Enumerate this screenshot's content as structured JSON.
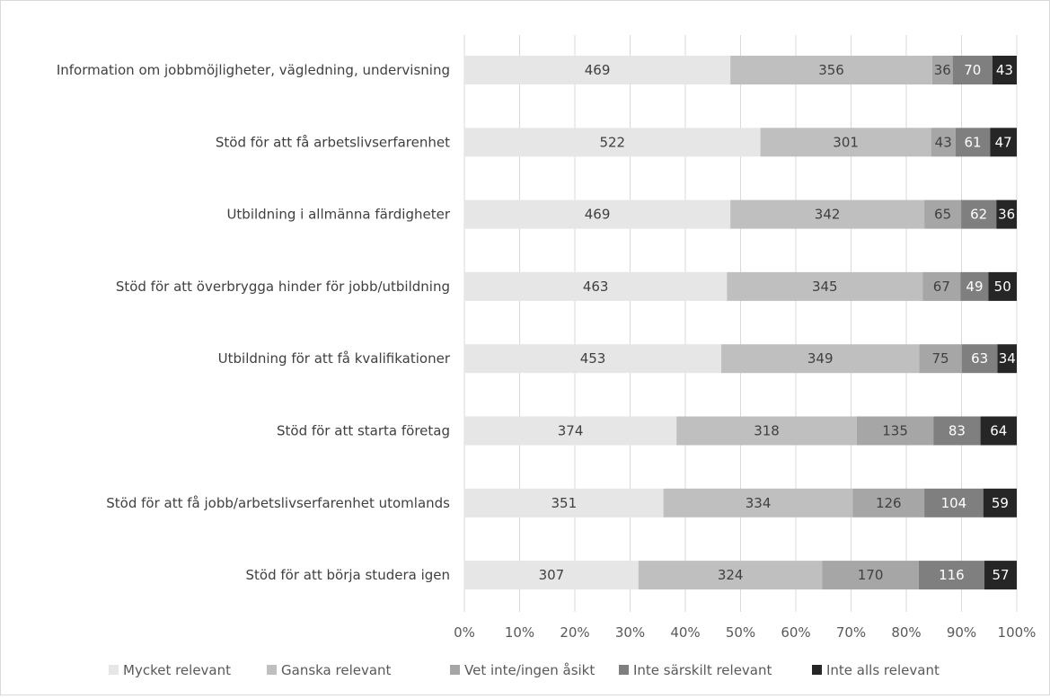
{
  "chart_data": {
    "type": "bar",
    "orientation": "horizontal",
    "stacking": "percent",
    "categories": [
      "Information om jobbmöjligheter, vägledning, undervisning",
      "Stöd för att få arbetslivserfarenhet",
      "Utbildning i allmänna färdigheter",
      "Stöd för att överbrygga hinder för jobb/utbildning",
      "Utbildning för att få kvalifikationer",
      "Stöd för att starta företag",
      "Stöd för att få jobb/arbetslivserfarenhet utomlands",
      "Stöd för att börja studera igen"
    ],
    "series": [
      {
        "name": "Mycket relevant",
        "color": "#e6e6e6",
        "label_color": "#404040",
        "values": [
          469,
          522,
          469,
          463,
          453,
          374,
          351,
          307
        ]
      },
      {
        "name": "Ganska relevant",
        "color": "#bfbfbf",
        "label_color": "#404040",
        "values": [
          356,
          301,
          342,
          345,
          349,
          318,
          334,
          324
        ]
      },
      {
        "name": "Vet inte/ingen åsikt",
        "color": "#a6a6a6",
        "label_color": "#404040",
        "values": [
          36,
          43,
          65,
          67,
          75,
          135,
          126,
          170
        ]
      },
      {
        "name": "Inte särskilt relevant",
        "color": "#7f7f7f",
        "label_color": "#ffffff",
        "values": [
          70,
          61,
          62,
          49,
          63,
          83,
          104,
          116
        ]
      },
      {
        "name": "Inte alls relevant",
        "color": "#262626",
        "label_color": "#ffffff",
        "values": [
          43,
          47,
          36,
          50,
          34,
          64,
          59,
          57
        ]
      }
    ],
    "x_ticks": [
      "0%",
      "10%",
      "20%",
      "30%",
      "40%",
      "50%",
      "60%",
      "70%",
      "80%",
      "90%",
      "100%"
    ],
    "xlim": [
      0,
      100
    ],
    "grid": true,
    "legend_position": "bottom"
  }
}
